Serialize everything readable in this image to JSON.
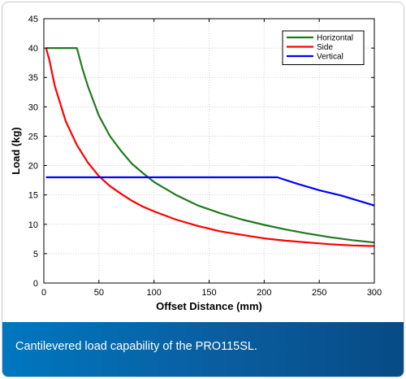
{
  "chart_data": {
    "type": "line",
    "xlabel": "Offset Distance (mm)",
    "ylabel": "Load (kg)",
    "xlim": [
      0,
      300
    ],
    "ylim": [
      0,
      45
    ],
    "xticks": [
      0,
      50,
      100,
      150,
      200,
      250,
      300
    ],
    "yticks": [
      0,
      5,
      10,
      15,
      20,
      25,
      30,
      35,
      40,
      45
    ],
    "grid": true,
    "legend_position": "top-right",
    "series": [
      {
        "name": "Horizontal",
        "color": "#1f7a1f",
        "x": [
          2,
          30,
          35,
          40,
          45,
          50,
          60,
          70,
          80,
          90,
          100,
          120,
          140,
          160,
          180,
          200,
          220,
          240,
          260,
          280,
          300
        ],
        "y": [
          40,
          40,
          36.5,
          33.5,
          31,
          28.5,
          25,
          22.5,
          20.3,
          18.7,
          17.2,
          15,
          13.2,
          11.9,
          10.8,
          9.9,
          9.1,
          8.4,
          7.8,
          7.3,
          6.9
        ]
      },
      {
        "name": "Side",
        "color": "#ff0000",
        "x": [
          2,
          5,
          10,
          20,
          30,
          40,
          50,
          60,
          70,
          80,
          90,
          100,
          120,
          140,
          160,
          180,
          200,
          220,
          240,
          260,
          280,
          300
        ],
        "y": [
          40,
          38,
          33.5,
          27.5,
          23.5,
          20.5,
          18.2,
          16.5,
          15.2,
          14,
          13,
          12.2,
          10.8,
          9.7,
          8.8,
          8.2,
          7.6,
          7.2,
          6.9,
          6.6,
          6.4,
          6.3
        ]
      },
      {
        "name": "Vertical",
        "color": "#0000ff",
        "x": [
          2,
          212,
          230,
          250,
          270,
          300
        ],
        "y": [
          18,
          18,
          16.9,
          15.8,
          14.9,
          13.2
        ]
      }
    ]
  },
  "caption": {
    "text": "Cantilevered load capability of the PRO115SL."
  }
}
